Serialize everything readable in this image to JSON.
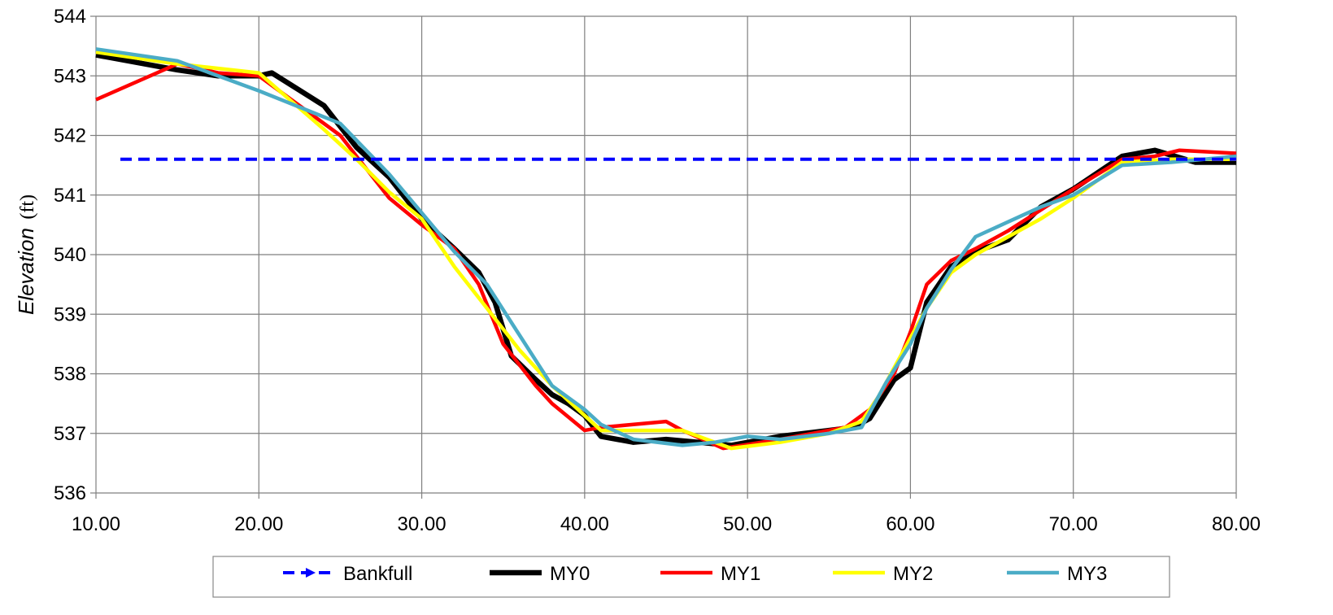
{
  "chart_data": {
    "type": "line",
    "title": "",
    "xlabel": "",
    "ylabel": "Elevation",
    "ylabel_unit": "(ft)",
    "xlim": [
      10,
      80
    ],
    "ylim": [
      536,
      544
    ],
    "x_ticks": [
      10,
      20,
      30,
      40,
      50,
      60,
      70,
      80
    ],
    "x_tick_labels": [
      "10.00",
      "20.00",
      "30.00",
      "40.00",
      "50.00",
      "60.00",
      "70.00",
      "80.00"
    ],
    "y_ticks": [
      536,
      537,
      538,
      539,
      540,
      541,
      542,
      543,
      544
    ],
    "y_tick_labels": [
      "536",
      "537",
      "538",
      "539",
      "540",
      "541",
      "542",
      "543",
      "544"
    ],
    "grid": true,
    "legend_position": "bottom",
    "series": [
      {
        "name": "Bankfull",
        "color": "#0000FF",
        "style": "dashed",
        "marker": "arrow",
        "x": [
          11.5,
          80
        ],
        "y": [
          541.6,
          541.6
        ]
      },
      {
        "name": "MY0",
        "color": "#000000",
        "style": "solid",
        "x": [
          10,
          15,
          17.5,
          20,
          20.8,
          24,
          26,
          28,
          30,
          32,
          33.5,
          34.5,
          35.5,
          37,
          38,
          39,
          40,
          41,
          43,
          45,
          47,
          49,
          52,
          55,
          56.5,
          57.5,
          59,
          60,
          61,
          62.5,
          64,
          66,
          68,
          70,
          73,
          75,
          77.5,
          80
        ],
        "y": [
          543.35,
          543.1,
          543,
          543,
          543.05,
          542.5,
          541.8,
          541.3,
          540.6,
          540.1,
          539.7,
          539.2,
          538.3,
          537.9,
          537.65,
          537.5,
          537.3,
          536.95,
          536.85,
          536.9,
          536.85,
          536.8,
          536.95,
          537.05,
          537.1,
          537.25,
          537.9,
          538.1,
          539.2,
          539.8,
          540.05,
          540.25,
          540.8,
          541.1,
          541.65,
          541.75,
          541.55,
          541.55
        ]
      },
      {
        "name": "MY1",
        "color": "#FF0000",
        "style": "solid",
        "x": [
          10,
          15,
          17.5,
          20,
          25,
          28,
          30,
          32,
          33.5,
          35,
          37,
          38,
          40,
          41,
          43,
          45,
          46,
          48.5,
          52,
          56,
          57.5,
          59,
          60,
          61,
          62.5,
          64,
          66,
          68,
          70,
          73,
          75,
          76.5,
          80
        ],
        "y": [
          542.6,
          543.2,
          543.05,
          543,
          542,
          540.95,
          540.5,
          540.1,
          539.5,
          538.5,
          537.8,
          537.5,
          537.05,
          537.1,
          537.15,
          537.2,
          537.05,
          536.75,
          536.9,
          537.1,
          537.4,
          538,
          538.7,
          539.5,
          539.9,
          540.1,
          540.4,
          540.75,
          541.1,
          541.6,
          541.65,
          541.75,
          541.7
        ]
      },
      {
        "name": "MY2",
        "color": "#FFFF00",
        "style": "solid",
        "x": [
          10,
          15,
          20,
          24,
          26,
          28,
          30,
          32,
          34,
          36,
          38,
          40,
          41,
          43,
          46,
          49,
          52,
          55,
          57,
          58,
          59,
          60,
          61,
          62.5,
          64,
          66,
          68,
          70,
          73,
          76,
          80
        ],
        "y": [
          543.4,
          543.2,
          543.05,
          542.1,
          541.6,
          541.05,
          540.6,
          539.8,
          539.1,
          538.4,
          537.8,
          537.3,
          537.05,
          537.05,
          537.05,
          536.75,
          536.85,
          537,
          537.2,
          537.6,
          538.1,
          538.6,
          539.1,
          539.7,
          540,
          540.3,
          540.6,
          540.95,
          541.55,
          541.6,
          541.6
        ]
      },
      {
        "name": "MY3",
        "color": "#4BACC6",
        "style": "solid",
        "x": [
          10,
          15,
          20,
          25,
          28,
          30,
          32,
          34,
          36,
          38,
          40,
          41,
          43,
          46,
          48,
          50,
          52,
          55,
          57,
          58.5,
          60,
          61,
          62.5,
          64,
          66,
          68,
          70,
          73,
          76,
          80
        ],
        "y": [
          543.45,
          543.25,
          542.75,
          542.2,
          541.35,
          540.7,
          540.05,
          539.5,
          538.65,
          537.8,
          537.4,
          537.15,
          536.9,
          536.8,
          536.85,
          536.95,
          536.9,
          537,
          537.1,
          537.85,
          538.5,
          539.1,
          539.75,
          540.3,
          540.55,
          540.8,
          541,
          541.5,
          541.55,
          541.65
        ]
      }
    ]
  }
}
